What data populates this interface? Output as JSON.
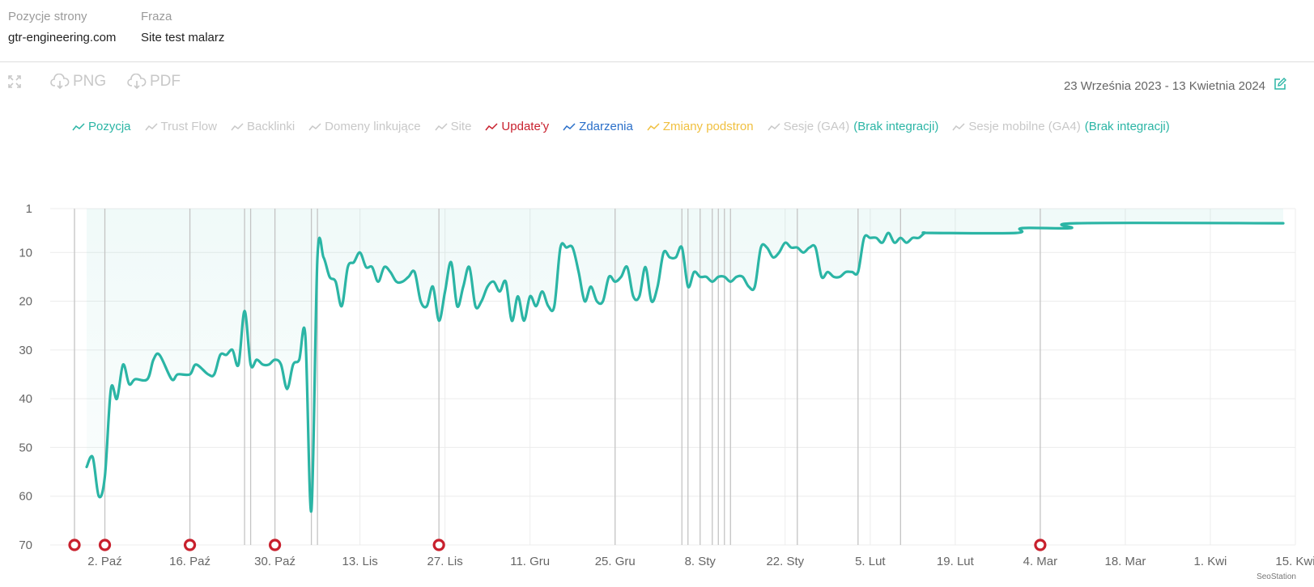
{
  "header": {
    "site_label": "Pozycje strony",
    "site_value": "gtr-engineering.com",
    "phrase_label": "Fraza",
    "phrase_value": "Site test malarz"
  },
  "toolbar": {
    "expand_icon": "expand-icon",
    "png_label": "PNG",
    "pdf_label": "PDF",
    "date_range": "23 Września 2023 - 13 Kwietnia 2024",
    "edit_icon": "edit-icon"
  },
  "legend": [
    {
      "label": "Pozycja",
      "color": "#2bb5a5",
      "active": true
    },
    {
      "label": "Trust Flow",
      "color": "#c8c8c8",
      "active": false
    },
    {
      "label": "Backlinki",
      "color": "#c8c8c8",
      "active": false
    },
    {
      "label": "Domeny linkujące",
      "color": "#c8c8c8",
      "active": false
    },
    {
      "label": "Site",
      "color": "#c8c8c8",
      "active": false
    },
    {
      "label": "Update'y",
      "color": "#c8202d",
      "active": true
    },
    {
      "label": "Zdarzenia",
      "color": "#2a6fc9",
      "active": true
    },
    {
      "label": "Zmiany podstron",
      "color": "#f0c040",
      "active": true
    },
    {
      "label": "Sesje (GA4)",
      "color": "#c8c8c8",
      "active": false,
      "note": "(Brak integracji)"
    },
    {
      "label": "Sesje mobilne (GA4)",
      "color": "#c8c8c8",
      "active": false,
      "note": "(Brak integracji)"
    }
  ],
  "note_color": "#2bb5a5",
  "chart_data": {
    "type": "line",
    "ylim": [
      1,
      70
    ],
    "y_reversed": true,
    "yticks": [
      1,
      10,
      20,
      30,
      40,
      50,
      60,
      70
    ],
    "xlim": [
      "2023-09-23",
      "2024-04-15"
    ],
    "xticks": [
      {
        "date": "2023-10-02",
        "label": "2. Paź"
      },
      {
        "date": "2023-10-16",
        "label": "16. Paź"
      },
      {
        "date": "2023-10-30",
        "label": "30. Paź"
      },
      {
        "date": "2023-11-13",
        "label": "13. Lis"
      },
      {
        "date": "2023-11-27",
        "label": "27. Lis"
      },
      {
        "date": "2023-12-11",
        "label": "11. Gru"
      },
      {
        "date": "2023-12-25",
        "label": "25. Gru"
      },
      {
        "date": "2024-01-08",
        "label": "8. Sty"
      },
      {
        "date": "2024-01-22",
        "label": "22. Sty"
      },
      {
        "date": "2024-02-05",
        "label": "5. Lut"
      },
      {
        "date": "2024-02-19",
        "label": "19. Lut"
      },
      {
        "date": "2024-03-04",
        "label": "4. Mar"
      },
      {
        "date": "2024-03-18",
        "label": "18. Mar"
      },
      {
        "date": "2024-04-01",
        "label": "1. Kwi"
      },
      {
        "date": "2024-04-15",
        "label": "15. Kwi"
      }
    ],
    "series": [
      {
        "name": "Pozycja",
        "color": "#2bb5a5",
        "points": [
          [
            "2023-09-29",
            54
          ],
          [
            "2023-09-30",
            52
          ],
          [
            "2023-10-01",
            60
          ],
          [
            "2023-10-02",
            56
          ],
          [
            "2023-10-03",
            38
          ],
          [
            "2023-10-04",
            40
          ],
          [
            "2023-10-05",
            33
          ],
          [
            "2023-10-06",
            37
          ],
          [
            "2023-10-07",
            36
          ],
          [
            "2023-10-09",
            36
          ],
          [
            "2023-10-10",
            32
          ],
          [
            "2023-10-11",
            31
          ],
          [
            "2023-10-13",
            36
          ],
          [
            "2023-10-14",
            35
          ],
          [
            "2023-10-16",
            35
          ],
          [
            "2023-10-17",
            33
          ],
          [
            "2023-10-19",
            35
          ],
          [
            "2023-10-20",
            35
          ],
          [
            "2023-10-21",
            31
          ],
          [
            "2023-10-22",
            31
          ],
          [
            "2023-10-23",
            30
          ],
          [
            "2023-10-24",
            33
          ],
          [
            "2023-10-25",
            22
          ],
          [
            "2023-10-26",
            33
          ],
          [
            "2023-10-27",
            32
          ],
          [
            "2023-10-28",
            33
          ],
          [
            "2023-10-29",
            33
          ],
          [
            "2023-10-30",
            32
          ],
          [
            "2023-10-31",
            33
          ],
          [
            "2023-11-01",
            38
          ],
          [
            "2023-11-02",
            33
          ],
          [
            "2023-11-03",
            32
          ],
          [
            "2023-11-04",
            27
          ],
          [
            "2023-11-05",
            63
          ],
          [
            "2023-11-06",
            11
          ],
          [
            "2023-11-07",
            11
          ],
          [
            "2023-11-08",
            15
          ],
          [
            "2023-11-09",
            16
          ],
          [
            "2023-11-10",
            21
          ],
          [
            "2023-11-11",
            13
          ],
          [
            "2023-11-12",
            12
          ],
          [
            "2023-11-13",
            10
          ],
          [
            "2023-11-14",
            13
          ],
          [
            "2023-11-15",
            13
          ],
          [
            "2023-11-16",
            16
          ],
          [
            "2023-11-17",
            13
          ],
          [
            "2023-11-18",
            14
          ],
          [
            "2023-11-19",
            16
          ],
          [
            "2023-11-20",
            16
          ],
          [
            "2023-11-21",
            15
          ],
          [
            "2023-11-22",
            14
          ],
          [
            "2023-11-23",
            20
          ],
          [
            "2023-11-24",
            21
          ],
          [
            "2023-11-25",
            17
          ],
          [
            "2023-11-26",
            24
          ],
          [
            "2023-11-27",
            18
          ],
          [
            "2023-11-28",
            12
          ],
          [
            "2023-11-29",
            21
          ],
          [
            "2023-11-30",
            17
          ],
          [
            "2023-12-01",
            13
          ],
          [
            "2023-12-02",
            21
          ],
          [
            "2023-12-03",
            20
          ],
          [
            "2023-12-04",
            17
          ],
          [
            "2023-12-05",
            16
          ],
          [
            "2023-12-06",
            18
          ],
          [
            "2023-12-07",
            16
          ],
          [
            "2023-12-08",
            24
          ],
          [
            "2023-12-09",
            19
          ],
          [
            "2023-12-10",
            24
          ],
          [
            "2023-12-11",
            19
          ],
          [
            "2023-12-12",
            21
          ],
          [
            "2023-12-13",
            18
          ],
          [
            "2023-12-14",
            21
          ],
          [
            "2023-12-15",
            21
          ],
          [
            "2023-12-16",
            9
          ],
          [
            "2023-12-17",
            9
          ],
          [
            "2023-12-18",
            9
          ],
          [
            "2023-12-19",
            14
          ],
          [
            "2023-12-20",
            20
          ],
          [
            "2023-12-21",
            17
          ],
          [
            "2023-12-22",
            20
          ],
          [
            "2023-12-23",
            20
          ],
          [
            "2023-12-24",
            15
          ],
          [
            "2023-12-25",
            16
          ],
          [
            "2023-12-26",
            15
          ],
          [
            "2023-12-27",
            13
          ],
          [
            "2023-12-28",
            19
          ],
          [
            "2023-12-29",
            19
          ],
          [
            "2023-12-30",
            13
          ],
          [
            "2023-12-31",
            20
          ],
          [
            "2024-01-01",
            17
          ],
          [
            "2024-01-02",
            10
          ],
          [
            "2024-01-03",
            11
          ],
          [
            "2024-01-04",
            11
          ],
          [
            "2024-01-05",
            9
          ],
          [
            "2024-01-06",
            17
          ],
          [
            "2024-01-07",
            14
          ],
          [
            "2024-01-08",
            15
          ],
          [
            "2024-01-09",
            15
          ],
          [
            "2024-01-10",
            16
          ],
          [
            "2024-01-11",
            15
          ],
          [
            "2024-01-12",
            15
          ],
          [
            "2024-01-13",
            16
          ],
          [
            "2024-01-14",
            15
          ],
          [
            "2024-01-15",
            15
          ],
          [
            "2024-01-16",
            17
          ],
          [
            "2024-01-17",
            17
          ],
          [
            "2024-01-18",
            9
          ],
          [
            "2024-01-19",
            9
          ],
          [
            "2024-01-20",
            11
          ],
          [
            "2024-01-21",
            10
          ],
          [
            "2024-01-22",
            8
          ],
          [
            "2024-01-23",
            9
          ],
          [
            "2024-01-24",
            9
          ],
          [
            "2024-01-25",
            10
          ],
          [
            "2024-01-26",
            9
          ],
          [
            "2024-01-27",
            9
          ],
          [
            "2024-01-28",
            15
          ],
          [
            "2024-01-29",
            14
          ],
          [
            "2024-01-30",
            15
          ],
          [
            "2024-01-31",
            15
          ],
          [
            "2024-02-01",
            14
          ],
          [
            "2024-02-02",
            14
          ],
          [
            "2024-02-03",
            14
          ],
          [
            "2024-02-04",
            7
          ],
          [
            "2024-02-05",
            7
          ],
          [
            "2024-02-06",
            7
          ],
          [
            "2024-02-07",
            8
          ],
          [
            "2024-02-08",
            6
          ],
          [
            "2024-02-09",
            8
          ],
          [
            "2024-02-10",
            7
          ],
          [
            "2024-02-11",
            8
          ],
          [
            "2024-02-12",
            7
          ],
          [
            "2024-02-13",
            7
          ],
          [
            "2024-02-14",
            6
          ],
          [
            "2024-02-15",
            6
          ],
          [
            "2024-02-29",
            6
          ],
          [
            "2024-03-01",
            5
          ],
          [
            "2024-03-09",
            5
          ],
          [
            "2024-03-10",
            4
          ],
          [
            "2024-04-13",
            4
          ]
        ]
      }
    ],
    "updates": [
      "2023-09-27",
      "2023-10-02",
      "2023-10-16",
      "2023-10-30",
      "2023-11-26",
      "2024-03-04"
    ],
    "event_lines": [
      "2023-09-27",
      "2023-10-02",
      "2023-10-16",
      "2023-10-25",
      "2023-10-26",
      "2023-10-30",
      "2023-11-05",
      "2023-11-06",
      "2023-11-26",
      "2023-12-25",
      "2024-01-05",
      "2024-01-06",
      "2024-01-08",
      "2024-01-10",
      "2024-01-11",
      "2024-01-12",
      "2024-01-13",
      "2024-01-24",
      "2024-02-03",
      "2024-02-10",
      "2024-03-04"
    ],
    "watermark": "SeoStation"
  }
}
